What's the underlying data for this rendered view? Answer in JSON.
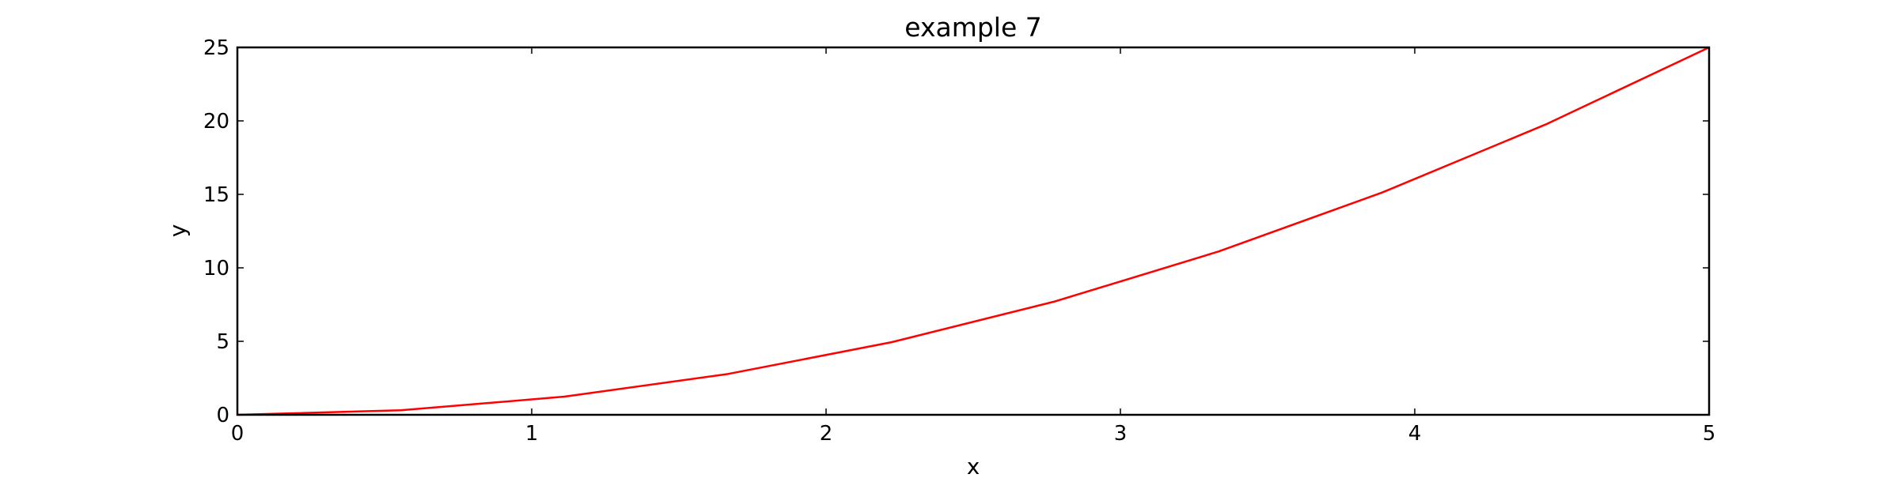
{
  "chart_data": {
    "type": "line",
    "title": "example 7",
    "xlabel": "x",
    "ylabel": "y",
    "xlim": [
      0,
      5
    ],
    "ylim": [
      0,
      25
    ],
    "xticks": [
      0,
      1,
      2,
      3,
      4,
      5
    ],
    "yticks": [
      0,
      5,
      10,
      15,
      20,
      25
    ],
    "xtick_labels": [
      "0",
      "1",
      "2",
      "3",
      "4",
      "5"
    ],
    "ytick_labels": [
      "0",
      "5",
      "10",
      "15",
      "20",
      "25"
    ],
    "grid": false,
    "series": [
      {
        "color": "#ff0000",
        "x": [
          0,
          0.5556,
          1.1111,
          1.6667,
          2.2222,
          2.7778,
          3.3333,
          3.8889,
          4.4444,
          5
        ],
        "y": [
          0,
          0.3086,
          1.2346,
          2.7778,
          4.9383,
          7.716,
          11.1111,
          15.1235,
          19.7531,
          25
        ]
      }
    ]
  }
}
